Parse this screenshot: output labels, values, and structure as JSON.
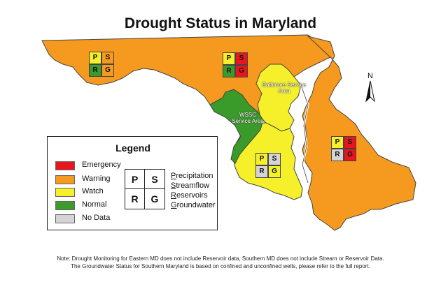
{
  "title": "Drought Status in Maryland",
  "colors": {
    "emergency": "#e8141e",
    "warning": "#f59a1e",
    "watch": "#f5f02a",
    "normal": "#3a9a2a",
    "nodata": "#d4d4d4"
  },
  "legend": {
    "title": "Legend",
    "items": [
      {
        "label": "Emergency",
        "color": "#e8141e"
      },
      {
        "label": "Warning",
        "color": "#f59a1e"
      },
      {
        "label": "Watch",
        "color": "#f5f02a"
      },
      {
        "label": "Normal",
        "color": "#3a9a2a"
      },
      {
        "label": "No Data",
        "color": "#d4d4d4"
      }
    ],
    "key_cells": [
      "P",
      "S",
      "R",
      "G"
    ],
    "key_text": [
      {
        "initial": "P",
        "rest": "recipitation"
      },
      {
        "initial": "S",
        "rest": "treamflow"
      },
      {
        "initial": "R",
        "rest": "eservoirs"
      },
      {
        "initial": "G",
        "rest": "roundwater"
      }
    ]
  },
  "regions": [
    {
      "name": "western",
      "cells": [
        {
          "letter": "P",
          "status": "watch"
        },
        {
          "letter": "S",
          "status": "warning"
        },
        {
          "letter": "R",
          "status": "normal"
        },
        {
          "letter": "G",
          "status": "warning"
        }
      ]
    },
    {
      "name": "central",
      "cells": [
        {
          "letter": "P",
          "status": "watch"
        },
        {
          "letter": "S",
          "status": "emergency"
        },
        {
          "letter": "R",
          "status": "normal"
        },
        {
          "letter": "G",
          "status": "emergency"
        }
      ]
    },
    {
      "name": "southern",
      "cells": [
        {
          "letter": "P",
          "status": "watch"
        },
        {
          "letter": "S",
          "status": "nodata"
        },
        {
          "letter": "R",
          "status": "nodata"
        },
        {
          "letter": "G",
          "status": "watch"
        }
      ]
    },
    {
      "name": "eastern",
      "cells": [
        {
          "letter": "P",
          "status": "watch"
        },
        {
          "letter": "S",
          "status": "emergency"
        },
        {
          "letter": "R",
          "status": "nodata"
        },
        {
          "letter": "G",
          "status": "emergency"
        }
      ]
    }
  ],
  "service_areas": {
    "baltimore": "Baltimore Service Area",
    "wssc": "WSSC Service Area"
  },
  "north_label": "N",
  "note_line1": "Note: Drought Monitoring for Eastern MD does not include Reservoir data, Southern MD does not include Stream or Reservoir Data.",
  "note_line2": "The Groundwater Status for Southern Maryland is based on confined and unconfined wells, please refer to the full report."
}
